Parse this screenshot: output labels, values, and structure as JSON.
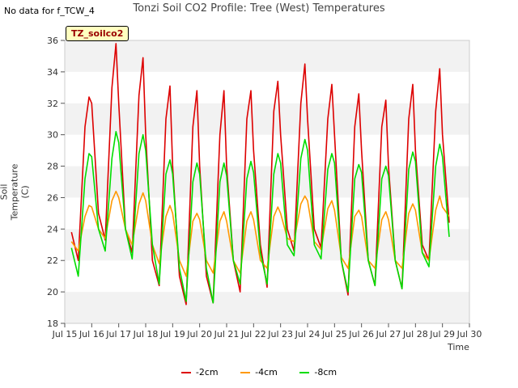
{
  "header": {
    "nodata_note": "No data for f_TCW_4",
    "title": "Tonzi Soil CO2 Profile: Tree (West) Temperatures",
    "badge": "TZ_soilco2"
  },
  "chart_data": {
    "type": "line",
    "title": "Tonzi Soil CO2 Profile: Tree (West) Temperatures",
    "xlabel": "Time",
    "ylabel": "Soil Temperature (C)",
    "xlim": [
      15,
      30
    ],
    "ylim": [
      18,
      36
    ],
    "x_ticks": [
      15,
      16,
      17,
      18,
      19,
      20,
      21,
      22,
      23,
      24,
      25,
      26,
      27,
      28,
      29,
      30
    ],
    "x_tick_labels": [
      "Jul 15",
      "Jul 16",
      "Jul 17",
      "Jul 18",
      "Jul 19",
      "Jul 20",
      "Jul 21",
      "Jul 22",
      "Jul 23",
      "Jul 24",
      "Jul 25",
      "Jul 26",
      "Jul 27",
      "Jul 28",
      "Jul 29",
      "Jul 30"
    ],
    "y_ticks": [
      18,
      20,
      22,
      24,
      26,
      28,
      30,
      32,
      34,
      36
    ],
    "grid": "horizontal bands",
    "legend_position": "bottom",
    "series": [
      {
        "name": "-2cm",
        "color": "#dd0000",
        "x": [
          15.25,
          15.5,
          15.75,
          15.9,
          16.0,
          16.25,
          16.5,
          16.75,
          16.9,
          17.0,
          17.25,
          17.5,
          17.75,
          17.9,
          18.0,
          18.25,
          18.5,
          18.75,
          18.9,
          19.0,
          19.25,
          19.5,
          19.75,
          19.9,
          20.0,
          20.25,
          20.5,
          20.75,
          20.9,
          21.0,
          21.25,
          21.5,
          21.75,
          21.9,
          22.0,
          22.25,
          22.5,
          22.75,
          22.9,
          23.0,
          23.25,
          23.5,
          23.75,
          23.9,
          24.0,
          24.25,
          24.5,
          24.75,
          24.9,
          25.0,
          25.25,
          25.5,
          25.75,
          25.9,
          26.0,
          26.25,
          26.5,
          26.75,
          26.9,
          27.0,
          27.25,
          27.5,
          27.75,
          27.9,
          28.0,
          28.25,
          28.5,
          28.75,
          28.9,
          29.0,
          29.25
        ],
        "y": [
          23.8,
          22.0,
          30.5,
          32.4,
          32.0,
          25.0,
          23.3,
          33.0,
          35.8,
          32.0,
          24.0,
          22.5,
          32.5,
          34.9,
          30.0,
          22.0,
          20.4,
          31.0,
          33.1,
          28.0,
          21.0,
          19.2,
          30.5,
          32.8,
          28.0,
          21.0,
          19.3,
          30.0,
          32.8,
          28.0,
          22.0,
          20.0,
          31.0,
          32.8,
          29.0,
          23.0,
          20.3,
          31.5,
          33.4,
          30.0,
          24.0,
          22.6,
          32.0,
          34.5,
          31.0,
          24.0,
          22.8,
          31.0,
          33.2,
          30.0,
          22.0,
          19.8,
          30.5,
          32.6,
          29.0,
          22.0,
          20.4,
          30.5,
          32.2,
          28.0,
          22.0,
          20.2,
          31.0,
          33.2,
          29.0,
          23.0,
          22.0,
          31.5,
          34.2,
          30.0,
          24.4
        ]
      },
      {
        "name": "-4cm",
        "color": "#ff9900",
        "x": [
          15.25,
          15.5,
          15.75,
          15.9,
          16.0,
          16.25,
          16.5,
          16.75,
          16.9,
          17.0,
          17.25,
          17.5,
          17.75,
          17.9,
          18.0,
          18.25,
          18.5,
          18.75,
          18.9,
          19.0,
          19.25,
          19.5,
          19.75,
          19.9,
          20.0,
          20.25,
          20.5,
          20.75,
          20.9,
          21.0,
          21.25,
          21.5,
          21.75,
          21.9,
          22.0,
          22.25,
          22.5,
          22.75,
          22.9,
          23.0,
          23.25,
          23.5,
          23.75,
          23.9,
          24.0,
          24.25,
          24.5,
          24.75,
          24.9,
          25.0,
          25.25,
          25.5,
          25.75,
          25.9,
          26.0,
          26.25,
          26.5,
          26.75,
          26.9,
          27.0,
          27.25,
          27.5,
          27.75,
          27.9,
          28.0,
          28.25,
          28.5,
          28.75,
          28.9,
          29.0,
          29.25
        ],
        "y": [
          23.2,
          22.6,
          24.8,
          25.5,
          25.4,
          24.0,
          23.4,
          25.8,
          26.4,
          26.0,
          24.0,
          23.0,
          25.6,
          26.3,
          25.8,
          23.0,
          21.8,
          24.8,
          25.5,
          25.0,
          22.0,
          21.0,
          24.5,
          25.0,
          24.6,
          22.0,
          21.2,
          24.5,
          25.1,
          24.5,
          22.0,
          21.2,
          24.5,
          25.1,
          24.6,
          22.0,
          21.5,
          24.8,
          25.4,
          25.0,
          23.4,
          23.2,
          25.6,
          26.1,
          25.8,
          23.2,
          22.7,
          25.3,
          25.8,
          25.2,
          22.2,
          21.5,
          24.8,
          25.2,
          24.8,
          22.0,
          21.5,
          24.6,
          25.1,
          24.6,
          22.0,
          21.5,
          25.0,
          25.6,
          25.2,
          22.5,
          22.0,
          25.2,
          26.1,
          25.4,
          24.8
        ]
      },
      {
        "name": "-8cm",
        "color": "#00dd00",
        "x": [
          15.25,
          15.5,
          15.75,
          15.9,
          16.0,
          16.25,
          16.5,
          16.75,
          16.9,
          17.0,
          17.25,
          17.5,
          17.75,
          17.9,
          18.0,
          18.25,
          18.5,
          18.75,
          18.9,
          19.0,
          19.25,
          19.5,
          19.75,
          19.9,
          20.0,
          20.25,
          20.5,
          20.75,
          20.9,
          21.0,
          21.25,
          21.5,
          21.75,
          21.9,
          22.0,
          22.25,
          22.5,
          22.75,
          22.9,
          23.0,
          23.25,
          23.5,
          23.75,
          23.9,
          24.0,
          24.25,
          24.5,
          24.75,
          24.9,
          25.0,
          25.25,
          25.5,
          25.75,
          25.9,
          26.0,
          26.25,
          26.5,
          26.75,
          26.9,
          27.0,
          27.25,
          27.5,
          27.75,
          27.9,
          28.0,
          28.25,
          28.5,
          28.75,
          28.9,
          29.0,
          29.25
        ],
        "y": [
          22.8,
          21.0,
          27.2,
          28.8,
          28.6,
          24.0,
          22.6,
          28.5,
          30.2,
          29.5,
          24.0,
          22.1,
          28.8,
          30.0,
          29.0,
          23.0,
          20.5,
          27.5,
          28.4,
          27.5,
          21.5,
          19.4,
          27.0,
          28.2,
          27.5,
          21.5,
          19.3,
          27.0,
          28.2,
          27.4,
          22.0,
          20.5,
          27.2,
          28.3,
          27.6,
          22.5,
          20.5,
          27.5,
          28.8,
          28.2,
          23.0,
          22.3,
          28.5,
          29.7,
          29.0,
          23.0,
          22.1,
          27.8,
          28.8,
          28.2,
          22.0,
          20.0,
          27.2,
          28.1,
          27.6,
          22.0,
          20.4,
          27.2,
          28.0,
          27.4,
          22.0,
          20.2,
          27.8,
          28.9,
          28.3,
          22.5,
          21.6,
          28.0,
          29.4,
          28.6,
          23.5
        ]
      }
    ]
  }
}
